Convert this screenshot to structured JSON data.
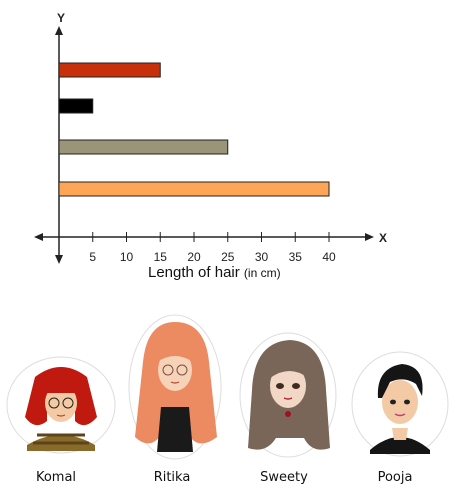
{
  "chart_data": {
    "type": "bar",
    "orientation": "horizontal",
    "values": [
      15,
      5,
      25,
      40
    ],
    "colors": [
      "#c8300c",
      "#000000",
      "#9a9478",
      "#fda658"
    ],
    "x_ticks": [
      5,
      10,
      15,
      20,
      25,
      30,
      35,
      40
    ],
    "xlim": [
      0,
      40
    ],
    "x_axis_letter": "X",
    "y_axis_letter": "Y",
    "xlabel": "Length of hair",
    "xlabel_unit": "(in cm)"
  },
  "people": [
    {
      "name": "Komal"
    },
    {
      "name": "Ritika"
    },
    {
      "name": "Sweety"
    },
    {
      "name": "Pooja"
    }
  ]
}
